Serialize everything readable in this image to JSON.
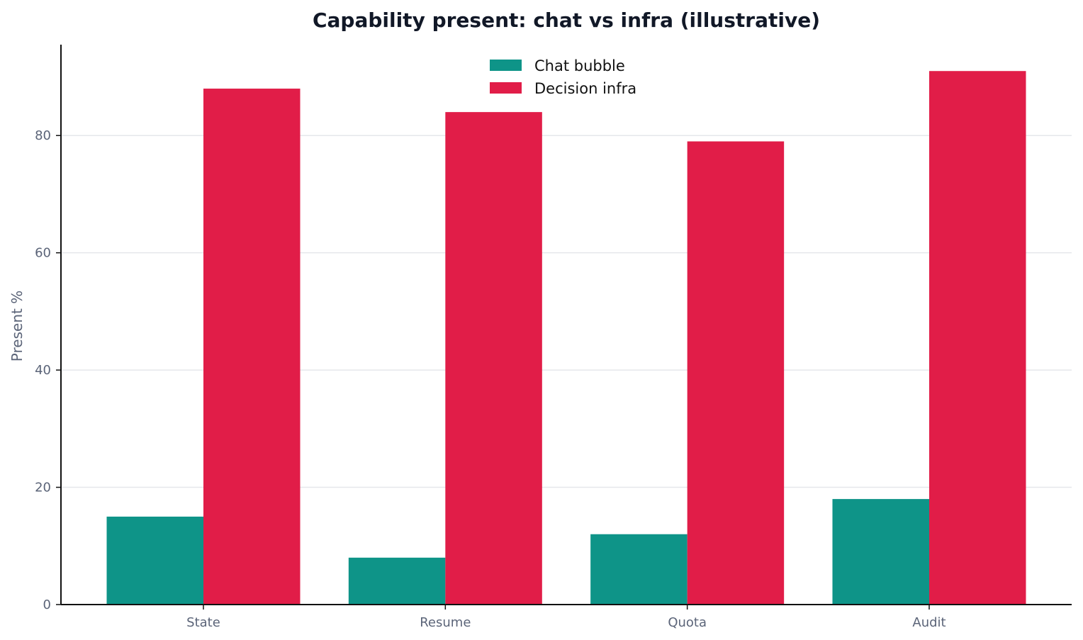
{
  "chart_data": {
    "type": "bar",
    "title": "Capability present: chat vs infra (illustrative)",
    "xlabel": "",
    "ylabel": "Present %",
    "categories": [
      "State",
      "Resume",
      "Quota",
      "Audit"
    ],
    "series": [
      {
        "name": "Chat bubble",
        "values": [
          15,
          8,
          12,
          18
        ],
        "color": "#0e9488"
      },
      {
        "name": "Decision infra",
        "values": [
          88,
          84,
          79,
          91
        ],
        "color": "#e11d48"
      }
    ],
    "ylim": [
      0,
      95.5
    ],
    "yticks": [
      0,
      20,
      40,
      60,
      80
    ],
    "grid": true,
    "legend_position": "top-center"
  }
}
